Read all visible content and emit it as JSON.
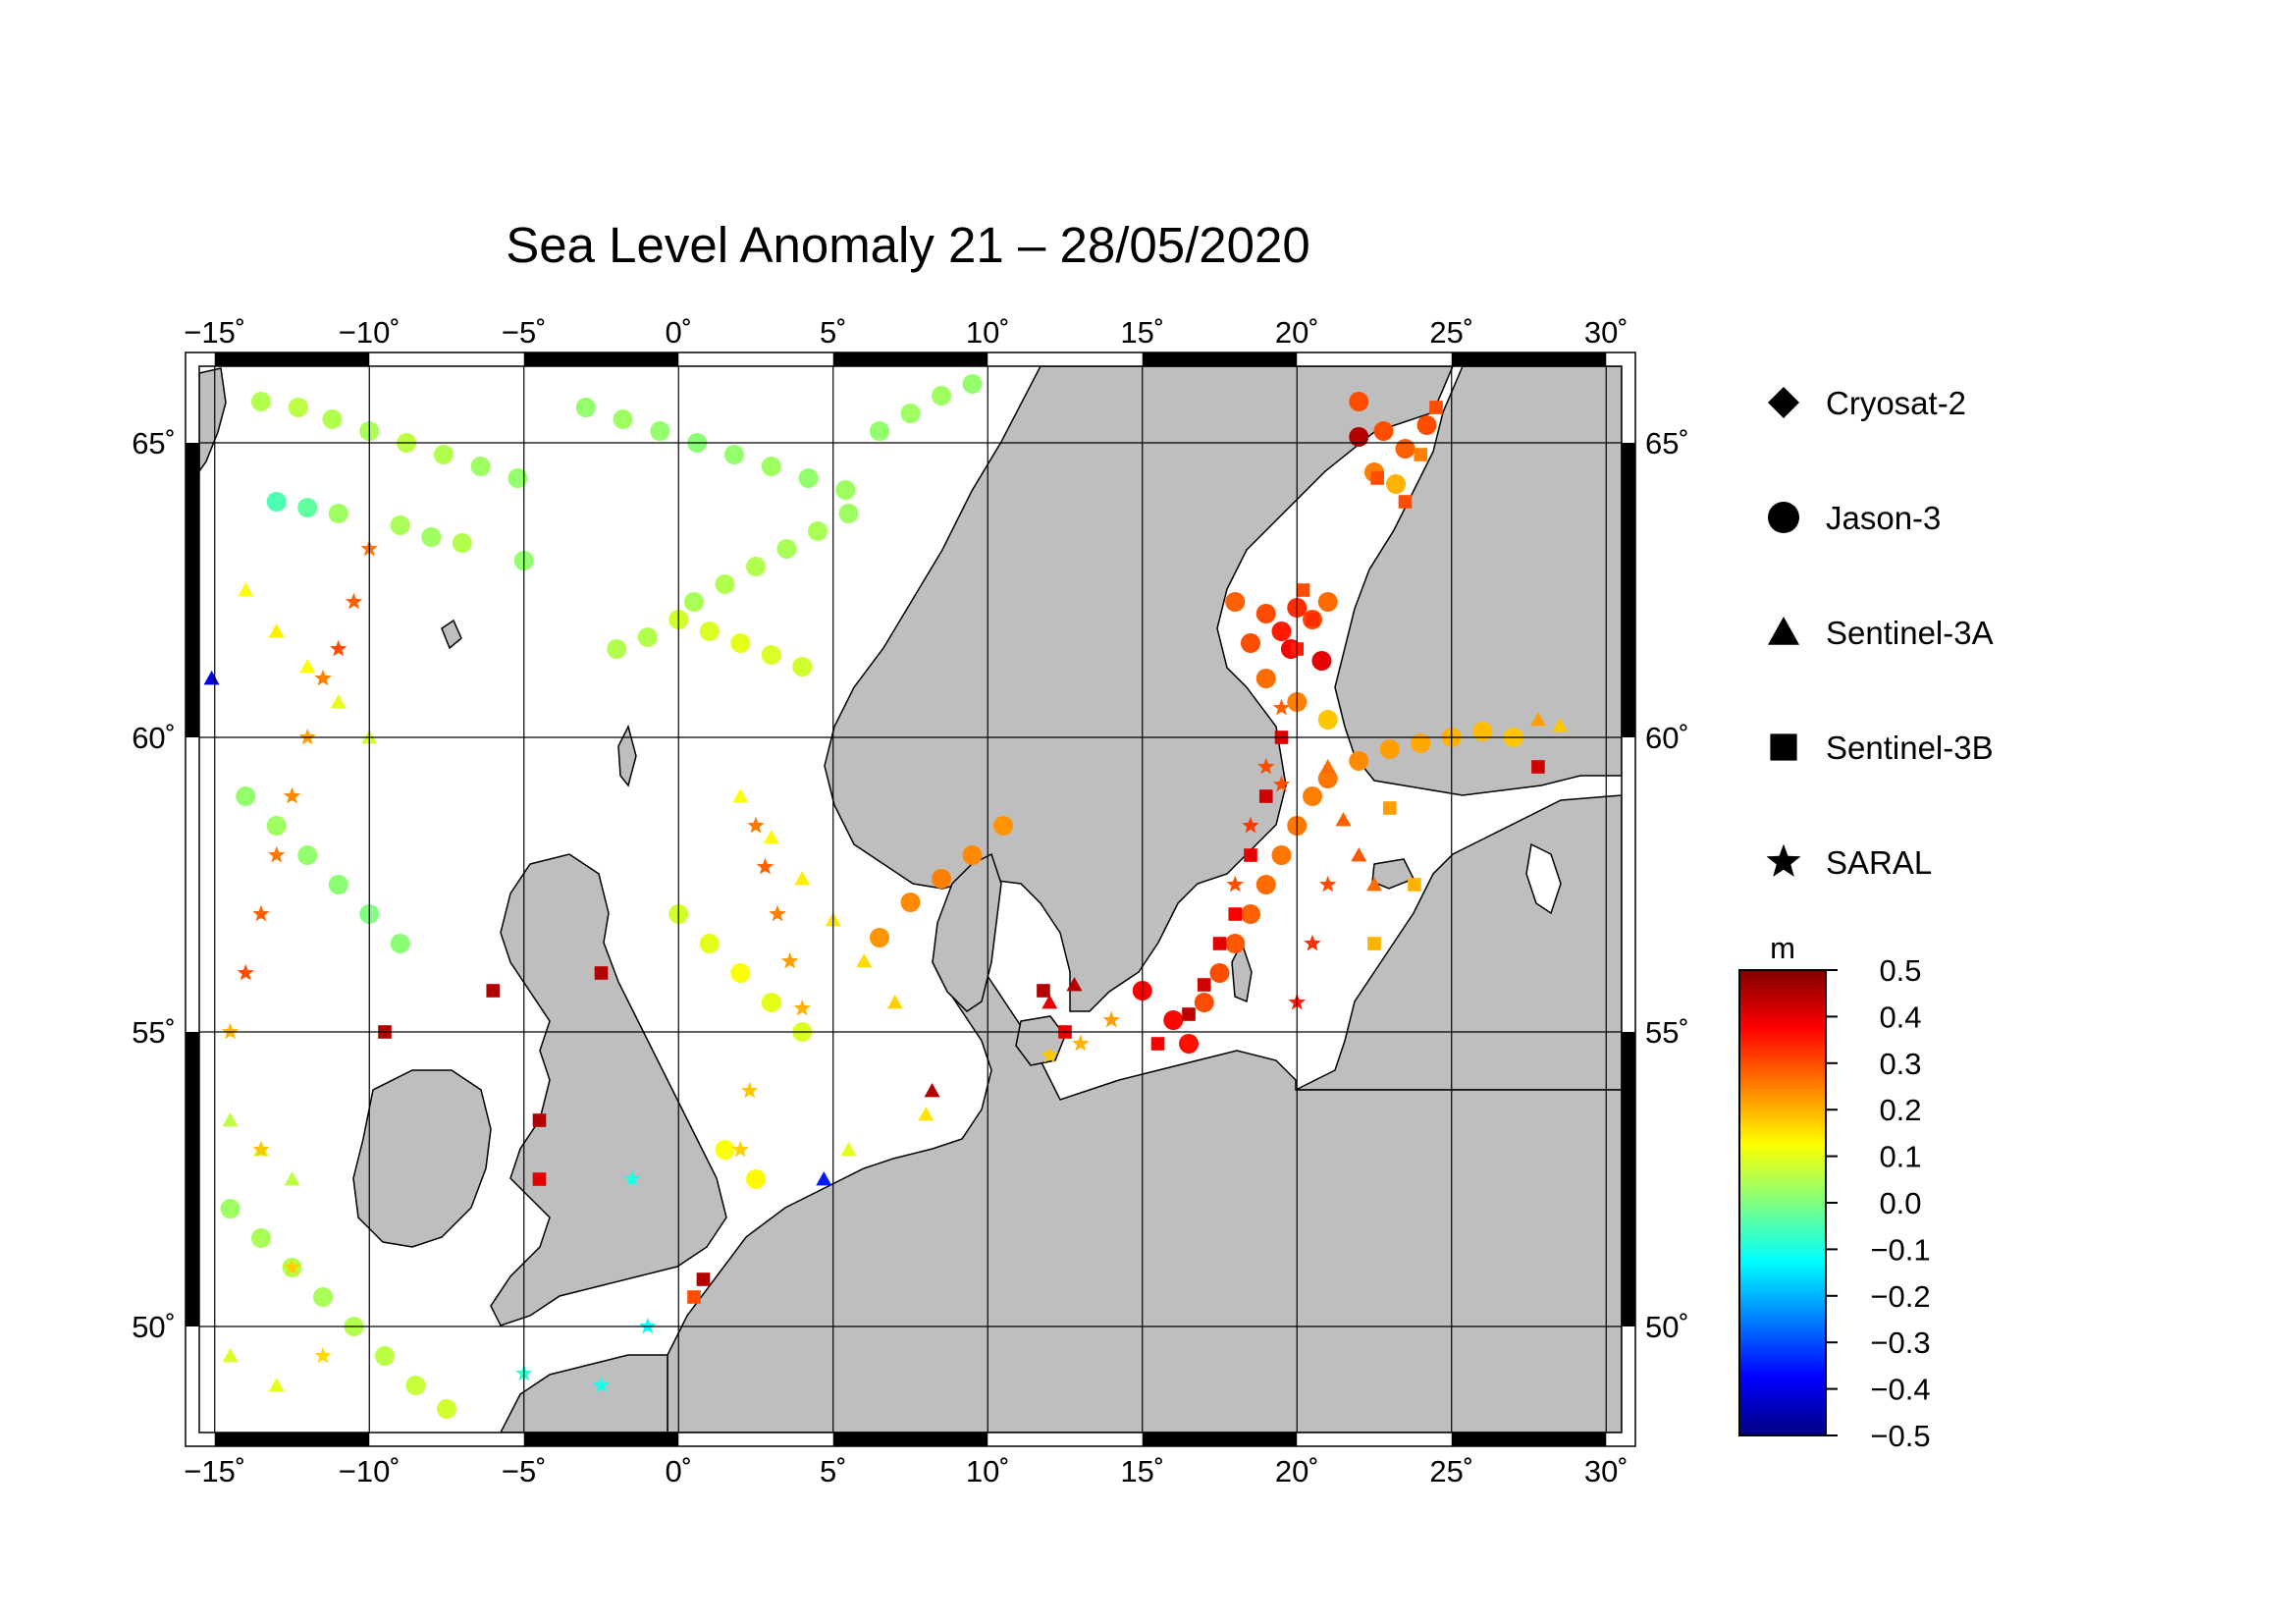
{
  "title": "Sea Level Anomaly 21 – 28/05/2020",
  "map": {
    "lon_range": [
      -15.5,
      30.5
    ],
    "lat_range": [
      48.2,
      66.3
    ],
    "lon_ticks": [
      -15,
      -10,
      -5,
      0,
      5,
      10,
      15,
      20,
      25,
      30
    ],
    "lon_tick_labels": [
      "−15˚",
      "−10˚",
      "−5˚",
      "0˚",
      "5˚",
      "10˚",
      "15˚",
      "20˚",
      "25˚",
      "30˚"
    ],
    "lat_ticks": [
      50,
      55,
      60,
      65
    ],
    "lat_tick_labels": [
      "50˚",
      "55˚",
      "60˚",
      "65˚"
    ],
    "ocean_color": "#ffffff",
    "land_color": "#bebebe"
  },
  "legend": [
    {
      "label": "Cryosat-2",
      "symbol": "diamond"
    },
    {
      "label": "Jason-3",
      "symbol": "circle"
    },
    {
      "label": "Sentinel-3A",
      "symbol": "triangle"
    },
    {
      "label": "Sentinel-3B",
      "symbol": "square"
    },
    {
      "label": "SARAL",
      "symbol": "star"
    }
  ],
  "colorbar": {
    "unit": "m",
    "range": [
      -0.5,
      0.5
    ],
    "tick_labels": [
      "0.5",
      "0.4",
      "0.3",
      "0.2",
      "0.1",
      "0.0",
      "−0.1",
      "−0.2",
      "−0.3",
      "−0.4",
      "−0.5"
    ],
    "colors": [
      "#000080",
      "#0000ff",
      "#0080ff",
      "#00ffff",
      "#80ff80",
      "#ffff00",
      "#ff8000",
      "#ff0000",
      "#800000"
    ]
  },
  "chart_data": {
    "type": "scatter",
    "x_name": "longitude",
    "y_name": "latitude",
    "value_name": "sea level anomaly (m)",
    "series": [
      {
        "name": "Jason-3",
        "symbol": "circle",
        "points": [
          [
            -13.5,
            65.7,
            0.05
          ],
          [
            -12.3,
            65.6,
            0.06
          ],
          [
            -11.2,
            65.4,
            0.05
          ],
          [
            -10.0,
            65.2,
            0.04
          ],
          [
            -8.8,
            65.0,
            0.06
          ],
          [
            -7.6,
            64.8,
            0.05
          ],
          [
            -6.4,
            64.6,
            0.03
          ],
          [
            -5.2,
            64.4,
            0.02
          ],
          [
            -13.0,
            64.0,
            -0.05
          ],
          [
            -12.0,
            63.9,
            -0.03
          ],
          [
            -11.0,
            63.8,
            0.03
          ],
          [
            -9.0,
            63.6,
            0.04
          ],
          [
            -8.0,
            63.4,
            0.03
          ],
          [
            -7.0,
            63.3,
            0.05
          ],
          [
            -5.0,
            63.0,
            0.02
          ],
          [
            -3.0,
            65.6,
            0.02
          ],
          [
            -1.8,
            65.4,
            0.03
          ],
          [
            -0.6,
            65.2,
            0.02
          ],
          [
            0.6,
            65.0,
            0.01
          ],
          [
            1.8,
            64.8,
            0.02
          ],
          [
            3.0,
            64.6,
            0.03
          ],
          [
            4.2,
            64.4,
            0.02
          ],
          [
            5.4,
            64.2,
            0.03
          ],
          [
            0.0,
            62.0,
            0.08
          ],
          [
            1.0,
            61.8,
            0.09
          ],
          [
            2.0,
            61.6,
            0.1
          ],
          [
            3.0,
            61.4,
            0.09
          ],
          [
            4.0,
            61.2,
            0.08
          ],
          [
            -2.0,
            61.5,
            0.05
          ],
          [
            -1.0,
            61.7,
            0.05
          ],
          [
            0.5,
            62.3,
            0.04
          ],
          [
            1.5,
            62.6,
            0.05
          ],
          [
            2.5,
            62.9,
            0.05
          ],
          [
            3.5,
            63.2,
            0.04
          ],
          [
            4.5,
            63.5,
            0.04
          ],
          [
            5.5,
            63.8,
            0.03
          ],
          [
            6.5,
            65.2,
            0.02
          ],
          [
            7.5,
            65.5,
            0.03
          ],
          [
            8.5,
            65.8,
            0.03
          ],
          [
            9.5,
            66.0,
            0.02
          ],
          [
            -14.0,
            59.0,
            0.02
          ],
          [
            -13.0,
            58.5,
            0.03
          ],
          [
            -12.0,
            58.0,
            0.02
          ],
          [
            -11.0,
            57.5,
            0.01
          ],
          [
            -10.0,
            57.0,
            0.0
          ],
          [
            -9.0,
            56.5,
            0.01
          ],
          [
            -14.5,
            52.0,
            0.03
          ],
          [
            -13.5,
            51.5,
            0.04
          ],
          [
            -12.5,
            51.0,
            0.05
          ],
          [
            -11.5,
            50.5,
            0.04
          ],
          [
            -10.5,
            50.0,
            0.05
          ],
          [
            -9.5,
            49.5,
            0.06
          ],
          [
            -8.5,
            49.0,
            0.07
          ],
          [
            -7.5,
            48.6,
            0.08
          ],
          [
            0.0,
            57.0,
            0.08
          ],
          [
            1.0,
            56.5,
            0.1
          ],
          [
            2.0,
            56.0,
            0.12
          ],
          [
            3.0,
            55.5,
            0.1
          ],
          [
            4.0,
            55.0,
            0.09
          ],
          [
            1.5,
            53.0,
            0.12
          ],
          [
            2.5,
            52.5,
            0.13
          ],
          [
            6.5,
            56.6,
            0.23
          ],
          [
            7.5,
            57.2,
            0.24
          ],
          [
            8.5,
            57.6,
            0.25
          ],
          [
            9.5,
            58.0,
            0.24
          ],
          [
            10.5,
            58.5,
            0.23
          ],
          [
            15.0,
            55.7,
            0.38
          ],
          [
            16.0,
            55.2,
            0.37
          ],
          [
            16.5,
            54.8,
            0.36
          ],
          [
            17.0,
            55.5,
            0.3
          ],
          [
            17.5,
            56.0,
            0.3
          ],
          [
            18.0,
            56.5,
            0.29
          ],
          [
            18.5,
            57.0,
            0.28
          ],
          [
            19.0,
            57.5,
            0.27
          ],
          [
            19.5,
            58.0,
            0.26
          ],
          [
            20.0,
            58.5,
            0.26
          ],
          [
            20.5,
            59.0,
            0.25
          ],
          [
            21.0,
            59.3,
            0.26
          ],
          [
            22.0,
            59.6,
            0.24
          ],
          [
            23.0,
            59.8,
            0.22
          ],
          [
            24.0,
            59.9,
            0.21
          ],
          [
            25.0,
            60.0,
            0.2
          ],
          [
            26.0,
            60.1,
            0.19
          ],
          [
            27.0,
            60.0,
            0.18
          ],
          [
            18.0,
            62.3,
            0.28
          ],
          [
            19.0,
            62.1,
            0.3
          ],
          [
            19.5,
            61.8,
            0.35
          ],
          [
            20.0,
            62.2,
            0.33
          ],
          [
            20.5,
            62.0,
            0.3
          ],
          [
            21.0,
            62.3,
            0.27
          ],
          [
            18.5,
            61.6,
            0.3
          ],
          [
            19.8,
            61.5,
            0.38
          ],
          [
            20.8,
            61.3,
            0.4
          ],
          [
            19.0,
            61.0,
            0.27
          ],
          [
            20.0,
            60.6,
            0.25
          ],
          [
            21.0,
            60.3,
            0.18
          ],
          [
            22.0,
            65.1,
            0.45
          ],
          [
            22.8,
            65.2,
            0.3
          ],
          [
            23.5,
            64.9,
            0.28
          ],
          [
            24.2,
            65.3,
            0.3
          ],
          [
            22.5,
            64.5,
            0.25
          ],
          [
            23.2,
            64.3,
            0.2
          ],
          [
            22.0,
            65.7,
            0.3
          ]
        ]
      },
      {
        "name": "Sentinel-3A",
        "symbol": "triangle",
        "points": [
          [
            -14.0,
            62.5,
            0.12
          ],
          [
            -13.0,
            61.8,
            0.14
          ],
          [
            -12.0,
            61.2,
            0.12
          ],
          [
            -11.0,
            60.6,
            0.1
          ],
          [
            -10.0,
            60.0,
            0.08
          ],
          [
            -15.1,
            61.0,
            -0.4
          ],
          [
            -14.5,
            53.5,
            0.06
          ],
          [
            -13.5,
            53.0,
            0.07
          ],
          [
            -12.5,
            52.5,
            0.06
          ],
          [
            -14.5,
            49.5,
            0.09
          ],
          [
            -13.0,
            49.0,
            0.1
          ],
          [
            2.0,
            59.0,
            0.12
          ],
          [
            3.0,
            58.3,
            0.13
          ],
          [
            4.0,
            57.6,
            0.14
          ],
          [
            5.0,
            56.9,
            0.15
          ],
          [
            6.0,
            56.2,
            0.16
          ],
          [
            7.0,
            55.5,
            0.17
          ],
          [
            5.5,
            53.0,
            0.1
          ],
          [
            4.7,
            52.5,
            -0.35
          ],
          [
            8.2,
            54.0,
            0.45
          ],
          [
            8.0,
            53.6,
            0.15
          ],
          [
            12.8,
            55.8,
            0.45
          ],
          [
            12.0,
            55.5,
            0.4
          ],
          [
            21.5,
            58.6,
            0.28
          ],
          [
            22.0,
            58.0,
            0.29
          ],
          [
            22.5,
            57.5,
            0.27
          ],
          [
            21.0,
            59.5,
            0.27
          ],
          [
            27.8,
            60.3,
            0.22
          ],
          [
            28.5,
            60.2,
            0.18
          ]
        ]
      },
      {
        "name": "Sentinel-3B",
        "symbol": "square",
        "points": [
          [
            -9.5,
            55.0,
            0.45
          ],
          [
            -6.0,
            55.7,
            0.45
          ],
          [
            -2.5,
            56.0,
            0.45
          ],
          [
            -4.5,
            53.5,
            0.45
          ],
          [
            -4.5,
            52.5,
            0.4
          ],
          [
            0.8,
            50.8,
            0.45
          ],
          [
            0.5,
            50.5,
            0.3
          ],
          [
            11.8,
            55.7,
            0.45
          ],
          [
            12.5,
            55.0,
            0.4
          ],
          [
            15.5,
            54.8,
            0.38
          ],
          [
            16.5,
            55.3,
            0.44
          ],
          [
            17.0,
            55.8,
            0.42
          ],
          [
            17.5,
            56.5,
            0.4
          ],
          [
            18.0,
            57.0,
            0.38
          ],
          [
            18.5,
            58.0,
            0.4
          ],
          [
            19.0,
            59.0,
            0.42
          ],
          [
            19.5,
            60.0,
            0.41
          ],
          [
            20.0,
            61.5,
            0.35
          ],
          [
            20.5,
            62.0,
            0.33
          ],
          [
            20.2,
            62.5,
            0.3
          ],
          [
            22.6,
            64.4,
            0.3
          ],
          [
            23.5,
            64.0,
            0.3
          ],
          [
            24.5,
            65.6,
            0.3
          ],
          [
            24.0,
            64.8,
            0.25
          ],
          [
            22.5,
            56.5,
            0.2
          ],
          [
            23.8,
            57.5,
            0.2
          ],
          [
            27.8,
            59.5,
            0.42
          ],
          [
            23.0,
            58.8,
            0.22
          ]
        ]
      },
      {
        "name": "SARAL",
        "symbol": "star",
        "points": [
          [
            -14.0,
            56.0,
            0.3
          ],
          [
            -13.5,
            57.0,
            0.28
          ],
          [
            -13.0,
            58.0,
            0.26
          ],
          [
            -12.5,
            59.0,
            0.24
          ],
          [
            -12.0,
            60.0,
            0.22
          ],
          [
            -11.5,
            61.0,
            0.25
          ],
          [
            -11.0,
            61.5,
            0.3
          ],
          [
            -10.5,
            62.3,
            0.28
          ],
          [
            -10.0,
            63.2,
            0.26
          ],
          [
            -14.5,
            55.0,
            0.2
          ],
          [
            -13.5,
            53.0,
            0.18
          ],
          [
            -12.5,
            51.0,
            0.17
          ],
          [
            -11.5,
            49.5,
            0.16
          ],
          [
            2.5,
            58.5,
            0.26
          ],
          [
            2.8,
            57.8,
            0.28
          ],
          [
            3.2,
            57.0,
            0.25
          ],
          [
            3.6,
            56.2,
            0.22
          ],
          [
            4.0,
            55.4,
            0.2
          ],
          [
            2.3,
            54.0,
            0.18
          ],
          [
            2.0,
            53.0,
            0.17
          ],
          [
            -1.5,
            52.5,
            -0.1
          ],
          [
            -1.0,
            50.0,
            -0.12
          ],
          [
            -2.5,
            49.0,
            -0.1
          ],
          [
            -5.0,
            49.2,
            -0.08
          ],
          [
            18.0,
            57.5,
            0.3
          ],
          [
            18.5,
            58.5,
            0.32
          ],
          [
            19.0,
            59.5,
            0.3
          ],
          [
            19.5,
            60.5,
            0.28
          ],
          [
            20.0,
            55.5,
            0.35
          ],
          [
            20.5,
            56.5,
            0.33
          ],
          [
            21.0,
            57.5,
            0.3
          ],
          [
            12.0,
            54.6,
            0.18
          ],
          [
            13.0,
            54.8,
            0.2
          ],
          [
            14.0,
            55.2,
            0.22
          ],
          [
            19.5,
            59.2,
            0.3
          ]
        ]
      }
    ]
  }
}
